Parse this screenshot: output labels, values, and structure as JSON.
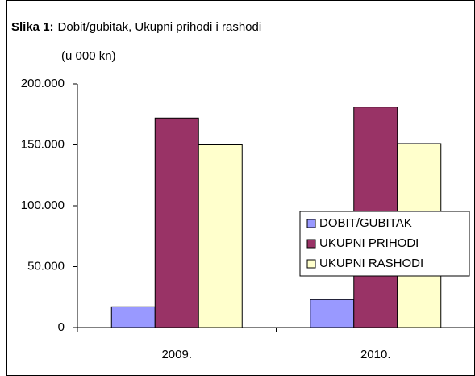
{
  "chart_data": {
    "type": "bar",
    "title_prefix": "Slika 1:",
    "title": "Dobit/gubitak, Ukupni prihodi i rashodi",
    "subtitle": "(u 000 kn)",
    "categories": [
      "2009.",
      "2010."
    ],
    "series": [
      {
        "name": "DOBIT/GUBITAK",
        "color": "#9999ff",
        "values": [
          17000,
          23000
        ]
      },
      {
        "name": "UKUPNI PRIHODI",
        "color": "#993366",
        "values": [
          172000,
          181000
        ]
      },
      {
        "name": "UKUPNI RASHODI",
        "color": "#ffffcc",
        "values": [
          150000,
          151000
        ]
      }
    ],
    "ylim": [
      0,
      200000
    ],
    "yticks": [
      0,
      {
        "value": 50000,
        "label": "50.000"
      },
      {
        "value": 100000,
        "label": "100.000"
      },
      {
        "value": 150000,
        "label": "150.000"
      },
      {
        "value": 200000,
        "label": "200.000"
      }
    ],
    "grid": false,
    "legend": "right"
  }
}
